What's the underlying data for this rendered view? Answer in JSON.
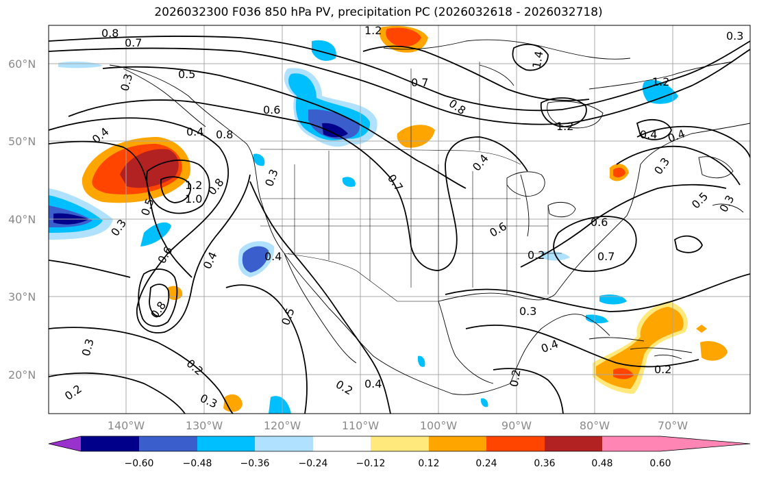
{
  "title": "2026032300 F036 850 hPa PV, precipitation PC (2026032618 - 2026032718)",
  "axes": {
    "lat_labels": [
      "60°N",
      "50°N",
      "40°N",
      "30°N",
      "20°N"
    ],
    "lon_labels": [
      "140°W",
      "130°W",
      "120°W",
      "110°W",
      "100°W",
      "90°W",
      "80°W",
      "70°W"
    ]
  },
  "contour_labels": [
    "0.8",
    "0.7",
    "0.3",
    "0.5",
    "0.6",
    "0.4",
    "1.2",
    "0.8",
    "0.5",
    "0.3",
    "0.6",
    "0.8",
    "0.4",
    "0.8",
    "0.3",
    "0.2",
    "0.2",
    "0.3",
    "0.4",
    "0.5",
    "0.4",
    "0.3",
    "0.4",
    "0.2",
    "0.2",
    "0.6",
    "0.4",
    "0.4",
    "1.2",
    "0.8",
    "1.2",
    "0.4",
    "1.4",
    "0.6",
    "0.7",
    "0.3",
    "0.5",
    "0.3",
    "0.7",
    "0.2",
    "0.4",
    "0.3",
    "0.2",
    "1.2",
    "0.7",
    "1.0",
    "0.3"
  ],
  "colorbar": {
    "ticks": [
      "−0.60",
      "−0.48",
      "−0.36",
      "−0.24",
      "−0.12",
      "0.12",
      "0.24",
      "0.36",
      "0.48",
      "0.60"
    ],
    "colors": [
      "#9932cc",
      "#00008b",
      "#3a5fcd",
      "#00bfff",
      "#b0e2ff",
      "#ffffff",
      "#ffe87c",
      "#ffa500",
      "#ff4500",
      "#b22222",
      "#ff86b4"
    ]
  }
}
